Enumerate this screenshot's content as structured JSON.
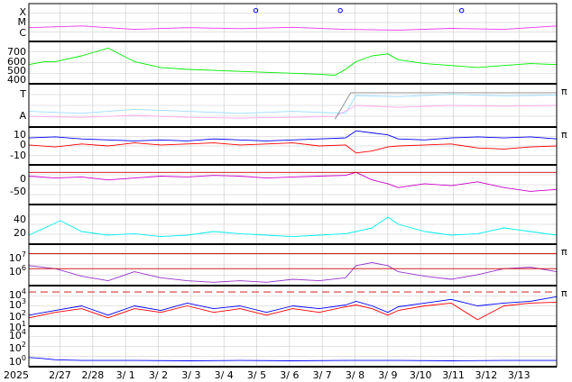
{
  "chart_data": {
    "type": "line",
    "title": "",
    "x_axis": {
      "year_label": "2025",
      "ticks": [
        "2/27",
        "2/28",
        "3/ 1",
        "3/ 2",
        "3/ 3",
        "3/ 4",
        "3/ 5",
        "3/ 6",
        "3/ 7",
        "3/ 8",
        "3/ 9",
        "3/10",
        "3/11",
        "3/12",
        "3/13"
      ],
      "range": [
        "2025-02-26",
        "2025-03-14"
      ],
      "grid": true
    },
    "panels": [
      {
        "id": "flare-class",
        "y_tick_labels": [
          "X",
          "M",
          "C"
        ],
        "series": [
          {
            "color": "#ee33ee",
            "style": "trace",
            "x": [
              0,
              0.1,
              0.2,
              0.3,
              0.4,
              0.5,
              0.6,
              0.7,
              0.8,
              0.9,
              1
            ],
            "y": [
              0.35,
              0.4,
              0.3,
              0.35,
              0.32,
              0.36,
              0.3,
              0.28,
              0.33,
              0.3,
              0.4
            ]
          },
          {
            "color": "#0000ff",
            "style": "markers",
            "x": [
              0.43,
              0.59,
              0.82
            ],
            "y": [
              0.85,
              0.85,
              0.85
            ]
          }
        ]
      },
      {
        "id": "solar-wind-speed",
        "y_tick_labels": [
          "700",
          "600",
          "500",
          "400"
        ],
        "ylim": [
          350,
          750
        ],
        "series": [
          {
            "color": "#00ee00",
            "x": [
              0,
              0.03,
              0.05,
              0.1,
              0.15,
              0.2,
              0.25,
              0.3,
              0.35,
              0.4,
              0.45,
              0.5,
              0.55,
              0.58,
              0.6,
              0.62,
              0.65,
              0.68,
              0.7,
              0.75,
              0.8,
              0.85,
              0.9,
              0.95,
              1
            ],
            "y": [
              530,
              560,
              560,
              620,
              700,
              560,
              500,
              480,
              470,
              460,
              450,
              440,
              430,
              420,
              480,
              560,
              620,
              640,
              580,
              540,
              520,
              500,
              520,
              540,
              530
            ]
          }
        ]
      },
      {
        "id": "field-polarity",
        "y_tick_labels": [
          "T",
          "A"
        ],
        "right_label": "π",
        "series": [
          {
            "color": "#99ddff",
            "x": [
              0,
              0.1,
              0.2,
              0.3,
              0.4,
              0.5,
              0.6,
              0.62,
              0.7,
              0.8,
              0.9,
              1
            ],
            "y": [
              0.35,
              0.3,
              0.4,
              0.35,
              0.3,
              0.35,
              0.3,
              0.75,
              0.72,
              0.78,
              0.74,
              0.76
            ]
          },
          {
            "color": "#ffaaee",
            "x": [
              0,
              0.1,
              0.2,
              0.3,
              0.4,
              0.5,
              0.58,
              0.62,
              0.7,
              0.8,
              0.9,
              1
            ],
            "y": [
              0.22,
              0.2,
              0.25,
              0.2,
              0.18,
              0.2,
              0.22,
              0.5,
              0.45,
              0.5,
              0.48,
              0.5
            ]
          },
          {
            "color": "#888888",
            "x": [
              0.58,
              0.61,
              0.63,
              0.7,
              0.8,
              0.9,
              1
            ],
            "y": [
              0.15,
              0.82,
              0.82,
              0.82,
              0.82,
              0.82,
              0.82
            ]
          }
        ]
      },
      {
        "id": "imf",
        "y_tick_labels": [
          "10",
          "0",
          "-10"
        ],
        "ylim": [
          -20,
          14
        ],
        "right_label": "π",
        "series": [
          {
            "color": "#0000ff",
            "x": [
              0,
              0.05,
              0.1,
              0.15,
              0.2,
              0.25,
              0.3,
              0.35,
              0.4,
              0.45,
              0.5,
              0.55,
              0.6,
              0.62,
              0.65,
              0.68,
              0.7,
              0.75,
              0.8,
              0.85,
              0.9,
              0.95,
              1
            ],
            "y": [
              5,
              6,
              4,
              3,
              2,
              3,
              2,
              4,
              3,
              2,
              3,
              4,
              5,
              12,
              10,
              8,
              4,
              3,
              5,
              6,
              5,
              6,
              4
            ]
          },
          {
            "color": "#ff0000",
            "x": [
              0,
              0.05,
              0.1,
              0.15,
              0.2,
              0.25,
              0.3,
              0.35,
              0.4,
              0.45,
              0.5,
              0.55,
              0.6,
              0.62,
              0.65,
              0.68,
              0.7,
              0.75,
              0.8,
              0.85,
              0.9,
              0.95,
              1
            ],
            "y": [
              -2,
              -4,
              -1,
              -3,
              0,
              -2,
              -1,
              0,
              -2,
              -1,
              0,
              -3,
              -2,
              -10,
              -8,
              -4,
              -3,
              -2,
              -1,
              -5,
              -6,
              -4,
              -3
            ]
          }
        ]
      },
      {
        "id": "bz-component",
        "y_tick_labels": [
          "0",
          "-50"
        ],
        "ylim": [
          -80,
          15
        ],
        "series": [
          {
            "color": "#cc00cc",
            "x": [
              0,
              0.05,
              0.1,
              0.15,
              0.2,
              0.25,
              0.3,
              0.35,
              0.4,
              0.45,
              0.5,
              0.55,
              0.6,
              0.62,
              0.65,
              0.68,
              0.7,
              0.75,
              0.8,
              0.85,
              0.9,
              0.95,
              1
            ],
            "y": [
              -10,
              -15,
              -12,
              -20,
              -15,
              -10,
              -12,
              -8,
              -10,
              -15,
              -12,
              -10,
              -8,
              0,
              -20,
              -30,
              -40,
              -30,
              -35,
              -25,
              -40,
              -50,
              -45
            ]
          },
          {
            "color": "#cc0000",
            "x": [
              0,
              1
            ],
            "y": [
              0,
              0
            ]
          }
        ]
      },
      {
        "id": "density",
        "y_tick_labels": [
          "40",
          "20"
        ],
        "ylim": [
          0,
          50
        ],
        "series": [
          {
            "color": "#00eeee",
            "x": [
              0,
              0.03,
              0.06,
              0.1,
              0.15,
              0.2,
              0.25,
              0.3,
              0.35,
              0.4,
              0.45,
              0.5,
              0.55,
              0.6,
              0.62,
              0.65,
              0.68,
              0.7,
              0.75,
              0.8,
              0.85,
              0.9,
              0.95,
              1
            ],
            "y": [
              10,
              20,
              30,
              15,
              10,
              12,
              8,
              10,
              15,
              12,
              10,
              8,
              10,
              12,
              15,
              20,
              35,
              25,
              15,
              10,
              12,
              20,
              15,
              10
            ]
          }
        ]
      },
      {
        "id": "electron-flux",
        "y_tick_labels": [
          "10^7",
          "10^6"
        ],
        "log": true,
        "ylim": [
          5,
          7.5
        ],
        "right_label": "π",
        "series": [
          {
            "color": "#9933cc",
            "x": [
              0,
              0.05,
              0.1,
              0.15,
              0.2,
              0.25,
              0.3,
              0.35,
              0.4,
              0.45,
              0.5,
              0.55,
              0.6,
              0.62,
              0.65,
              0.68,
              0.7,
              0.75,
              0.8,
              0.85,
              0.9,
              0.95,
              1
            ],
            "y": [
              6.2,
              6,
              5.5,
              5.2,
              5.8,
              5.4,
              5.2,
              5.1,
              5.2,
              5.1,
              5.3,
              5.2,
              5.4,
              6.2,
              6.4,
              6.2,
              5.8,
              5.5,
              5.3,
              5.6,
              6,
              6.1,
              5.8
            ]
          },
          {
            "color": "#cc0000",
            "x": [
              0,
              1
            ],
            "y": [
              7,
              7
            ]
          },
          {
            "color": "#cc0000",
            "x": [
              0,
              1
            ],
            "y": [
              6,
              6
            ]
          }
        ]
      },
      {
        "id": "proton-flux",
        "y_tick_labels": [
          "10^4",
          "10^3",
          "10^2",
          "10^1"
        ],
        "log": true,
        "ylim": [
          0.5,
          4.5
        ],
        "right_label": "π",
        "series": [
          {
            "color": "#0000ff",
            "x": [
              0,
              0.05,
              0.1,
              0.15,
              0.2,
              0.25,
              0.3,
              0.35,
              0.4,
              0.45,
              0.5,
              0.55,
              0.6,
              0.62,
              0.65,
              0.68,
              0.7,
              0.75,
              0.8,
              0.85,
              0.9,
              0.95,
              1
            ],
            "y": [
              1.5,
              2,
              2.5,
              1.5,
              2.5,
              2,
              2.8,
              2.2,
              2.5,
              1.8,
              2.5,
              2.2,
              2.6,
              3,
              2.5,
              1.8,
              2.4,
              2.8,
              3.2,
              2.5,
              2.8,
              3,
              3.5
            ]
          },
          {
            "color": "#ff0000",
            "x": [
              0,
              0.05,
              0.1,
              0.15,
              0.2,
              0.25,
              0.3,
              0.35,
              0.4,
              0.45,
              0.5,
              0.55,
              0.6,
              0.62,
              0.65,
              0.68,
              0.7,
              0.75,
              0.8,
              0.85,
              0.9,
              0.95,
              1
            ],
            "y": [
              1.2,
              1.8,
              2.2,
              1.2,
              2.2,
              1.8,
              2.5,
              1.8,
              2.2,
              1.5,
              2.2,
              1.8,
              2.4,
              2.6,
              2.2,
              1.5,
              2,
              2.5,
              2.8,
              1,
              2.5,
              2.8,
              2.9
            ]
          },
          {
            "color": "#cc0000",
            "dashed": true,
            "x": [
              0,
              1
            ],
            "y": [
              4,
              4
            ]
          }
        ]
      },
      {
        "id": "xray-flux",
        "y_tick_labels": [
          "10^4",
          "10^2",
          "10^0"
        ],
        "log": true,
        "ylim": [
          -0.5,
          4.5
        ],
        "series": [
          {
            "color": "#0000ff",
            "x": [
              0,
              0.02,
              0.05,
              0.1,
              0.2,
              0.3,
              0.4,
              0.5,
              0.6,
              0.7,
              0.8,
              0.9,
              1
            ],
            "y": [
              0.5,
              0.4,
              0.2,
              0.1,
              0.1,
              0.05,
              0.1,
              0.05,
              0.1,
              0.1,
              0.05,
              0.1,
              0.1
            ]
          }
        ]
      }
    ]
  }
}
